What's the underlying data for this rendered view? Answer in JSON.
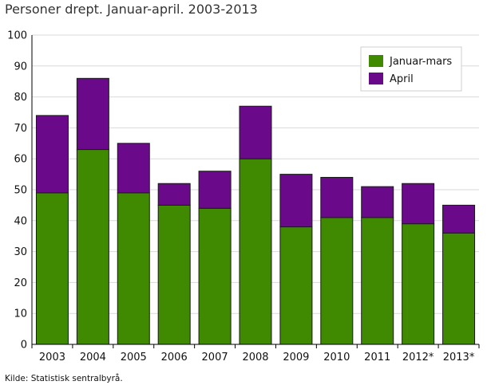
{
  "title": "Personer drept. Januar-april. 2003-2013",
  "source": "Kilde: Statistisk sentralbyrå.",
  "colors": {
    "jan_mars": "#3f8a00",
    "april": "#6a0a8a",
    "grid": "#d9d9d9",
    "axis": "#000000"
  },
  "chart_data": {
    "type": "bar",
    "stacked": true,
    "categories": [
      "2003",
      "2004",
      "2005",
      "2006",
      "2007",
      "2008",
      "2009",
      "2010",
      "2011",
      "2012*",
      "2013*"
    ],
    "series": [
      {
        "name": "Januar-mars",
        "values": [
          49,
          63,
          49,
          45,
          44,
          60,
          38,
          41,
          41,
          39,
          36
        ]
      },
      {
        "name": "April",
        "values": [
          25,
          23,
          16,
          7,
          12,
          17,
          17,
          13,
          10,
          13,
          9
        ]
      }
    ],
    "title": "Personer drept. Januar-april. 2003-2013",
    "xlabel": "",
    "ylabel": "",
    "ylim": [
      0,
      100
    ],
    "yticks": [
      0,
      10,
      20,
      30,
      40,
      50,
      60,
      70,
      80,
      90,
      100
    ],
    "grid": true,
    "legend_position": "top-right"
  }
}
